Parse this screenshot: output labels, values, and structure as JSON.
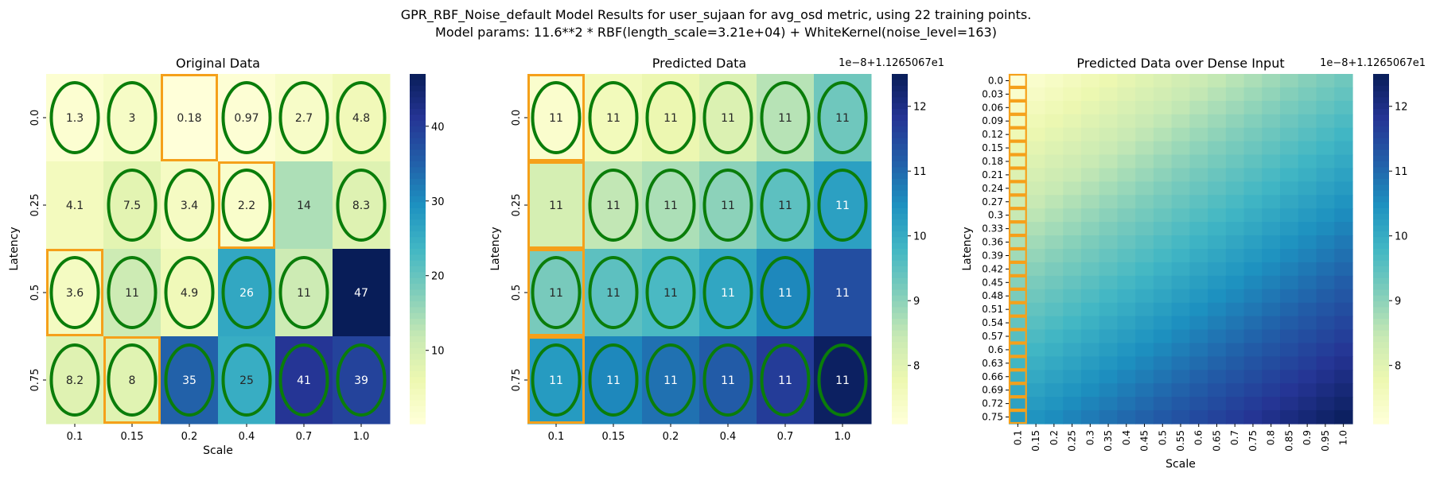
{
  "suptitle": {
    "line1": "GPR_RBF_Noise_default Model Results for user_sujaan for avg_osd metric, using 22 training points.",
    "line2": "Model params: 11.6**2 * RBF(length_scale=3.21e+04) + WhiteKernel(noise_level=163)"
  },
  "chart_data": [
    {
      "type": "heatmap",
      "title": "Original Data",
      "xlabel": "Scale",
      "ylabel": "Latency",
      "x_categories": [
        "0.1",
        "0.15",
        "0.2",
        "0.4",
        "0.7",
        "1.0"
      ],
      "y_categories": [
        "0.0",
        "0.25",
        "0.5",
        "0.75"
      ],
      "values": [
        [
          1.3,
          3,
          0.18,
          0.97,
          2.7,
          4.8
        ],
        [
          4.1,
          7.5,
          3.4,
          2.2,
          14,
          8.3
        ],
        [
          3.6,
          11,
          4.9,
          26,
          11,
          47
        ],
        [
          8.2,
          8,
          35,
          25,
          41,
          39
        ]
      ],
      "cell_labels": [
        [
          "1.3",
          "3",
          "0.18",
          "0.97",
          "2.7",
          "4.8"
        ],
        [
          "4.1",
          "7.5",
          "3.4",
          "2.2",
          "14",
          "8.3"
        ],
        [
          "3.6",
          "11",
          "4.9",
          "26",
          "11",
          "47"
        ],
        [
          "8.2",
          "8",
          "35",
          "25",
          "41",
          "39"
        ]
      ],
      "colormap": "YlGnBu",
      "colorbar": {
        "min": 0.18,
        "max": 47,
        "ticks": [
          "10",
          "20",
          "30",
          "40"
        ],
        "tick_values": [
          10,
          20,
          30,
          40
        ]
      },
      "circled_cells": [
        [
          0,
          0
        ],
        [
          0,
          1
        ],
        [
          0,
          3
        ],
        [
          0,
          4
        ],
        [
          0,
          5
        ],
        [
          1,
          1
        ],
        [
          1,
          2
        ],
        [
          1,
          3
        ],
        [
          1,
          5
        ],
        [
          2,
          0
        ],
        [
          2,
          1
        ],
        [
          2,
          2
        ],
        [
          2,
          3
        ],
        [
          2,
          4
        ],
        [
          3,
          0
        ],
        [
          3,
          1
        ],
        [
          3,
          2
        ],
        [
          3,
          3
        ],
        [
          3,
          4
        ],
        [
          3,
          5
        ]
      ],
      "boxed_cells": [
        [
          0,
          2
        ],
        [
          1,
          3
        ],
        [
          2,
          0
        ],
        [
          3,
          1
        ]
      ]
    },
    {
      "type": "heatmap",
      "title": "Predicted Data",
      "xlabel": "",
      "ylabel": "Latency",
      "x_categories": [
        "0.1",
        "0.15",
        "0.2",
        "0.4",
        "0.7",
        "1.0"
      ],
      "y_categories": [
        "0.0",
        "0.25",
        "0.5",
        "0.75"
      ],
      "values": [
        [
          7.3,
          7.6,
          7.8,
          8.1,
          8.6,
          9.3
        ],
        [
          8.2,
          8.5,
          8.7,
          9.0,
          9.5,
          10.2
        ],
        [
          9.2,
          9.5,
          9.7,
          10.1,
          10.6,
          11.4
        ],
        [
          10.3,
          10.6,
          10.9,
          11.2,
          11.7,
          12.4
        ]
      ],
      "cell_labels": [
        [
          "11",
          "11",
          "11",
          "11",
          "11",
          "11"
        ],
        [
          "11",
          "11",
          "11",
          "11",
          "11",
          "11"
        ],
        [
          "11",
          "11",
          "11",
          "11",
          "11",
          "11"
        ],
        [
          "11",
          "11",
          "11",
          "11",
          "11",
          "11"
        ]
      ],
      "colormap": "YlGnBu",
      "offset_text": "1e−8+1.1265067e1",
      "colorbar": {
        "min": 7.1,
        "max": 12.5,
        "ticks": [
          "8",
          "9",
          "10",
          "11",
          "12"
        ],
        "tick_values": [
          8,
          9,
          10,
          11,
          12
        ]
      },
      "circled_cells": [
        [
          0,
          0
        ],
        [
          0,
          1
        ],
        [
          0,
          2
        ],
        [
          0,
          3
        ],
        [
          0,
          4
        ],
        [
          0,
          5
        ],
        [
          1,
          1
        ],
        [
          1,
          2
        ],
        [
          1,
          3
        ],
        [
          1,
          4
        ],
        [
          1,
          5
        ],
        [
          2,
          0
        ],
        [
          2,
          1
        ],
        [
          2,
          2
        ],
        [
          2,
          3
        ],
        [
          2,
          4
        ],
        [
          3,
          0
        ],
        [
          3,
          1
        ],
        [
          3,
          2
        ],
        [
          3,
          3
        ],
        [
          3,
          4
        ],
        [
          3,
          5
        ]
      ],
      "boxed_cells": [
        [
          0,
          0
        ],
        [
          1,
          0
        ],
        [
          2,
          0
        ],
        [
          3,
          0
        ]
      ]
    },
    {
      "type": "heatmap",
      "title": "Predicted Data over Dense Input",
      "xlabel": "Scale",
      "ylabel": "Latency",
      "x_categories": [
        "0.1",
        "0.15",
        "0.2",
        "0.25",
        "0.3",
        "0.35",
        "0.4",
        "0.45",
        "0.5",
        "0.55",
        "0.6",
        "0.65",
        "0.7",
        "0.75",
        "0.8",
        "0.85",
        "0.9",
        "0.95",
        "1.0"
      ],
      "y_categories": [
        "0.0",
        "0.03",
        "0.06",
        "0.09",
        "0.12",
        "0.15",
        "0.18",
        "0.21",
        "0.24",
        "0.27",
        "0.3",
        "0.33",
        "0.36",
        "0.39",
        "0.42",
        "0.45",
        "0.48",
        "0.51",
        "0.54",
        "0.57",
        "0.6",
        "0.63",
        "0.66",
        "0.69",
        "0.72",
        "0.75"
      ],
      "grid_resolution": {
        "cols": 19,
        "rows": 26
      },
      "value_range": {
        "top_left": 7.2,
        "top_right": 9.3,
        "bottom_left": 10.3,
        "bottom_right": 12.4
      },
      "colormap": "YlGnBu",
      "offset_text": "1e−8+1.1265067e1",
      "colorbar": {
        "min": 7.1,
        "max": 12.5,
        "ticks": [
          "8",
          "9",
          "10",
          "11",
          "12"
        ],
        "tick_values": [
          8,
          9,
          10,
          11,
          12
        ]
      },
      "boxed_column": "0.1"
    }
  ],
  "colors": {
    "circle": "#0a7d0a",
    "box": "#f5a01a",
    "colormap_stops": [
      "#ffffd9",
      "#edf8b1",
      "#c7e9b4",
      "#7fcdbb",
      "#41b6c4",
      "#1d91c0",
      "#225ea8",
      "#253494",
      "#081d58"
    ]
  }
}
